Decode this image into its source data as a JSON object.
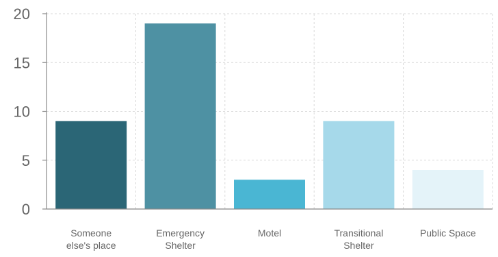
{
  "chart_data": {
    "type": "bar",
    "title": "",
    "xlabel": "",
    "ylabel": "",
    "categories": [
      [
        "Someone",
        "else's place"
      ],
      [
        "Emergency",
        "Shelter"
      ],
      [
        "Motel"
      ],
      [
        "Transitional",
        "Shelter"
      ],
      [
        "Public Space"
      ]
    ],
    "values": [
      9,
      19,
      3,
      9,
      4
    ],
    "ylim": [
      0,
      20
    ],
    "yticks": [
      0,
      5,
      10,
      15,
      20
    ],
    "grid": true,
    "colors": [
      "#2b6676",
      "#4e91a3",
      "#4ab6d3",
      "#a6d9ea",
      "#e4f3f9"
    ]
  }
}
